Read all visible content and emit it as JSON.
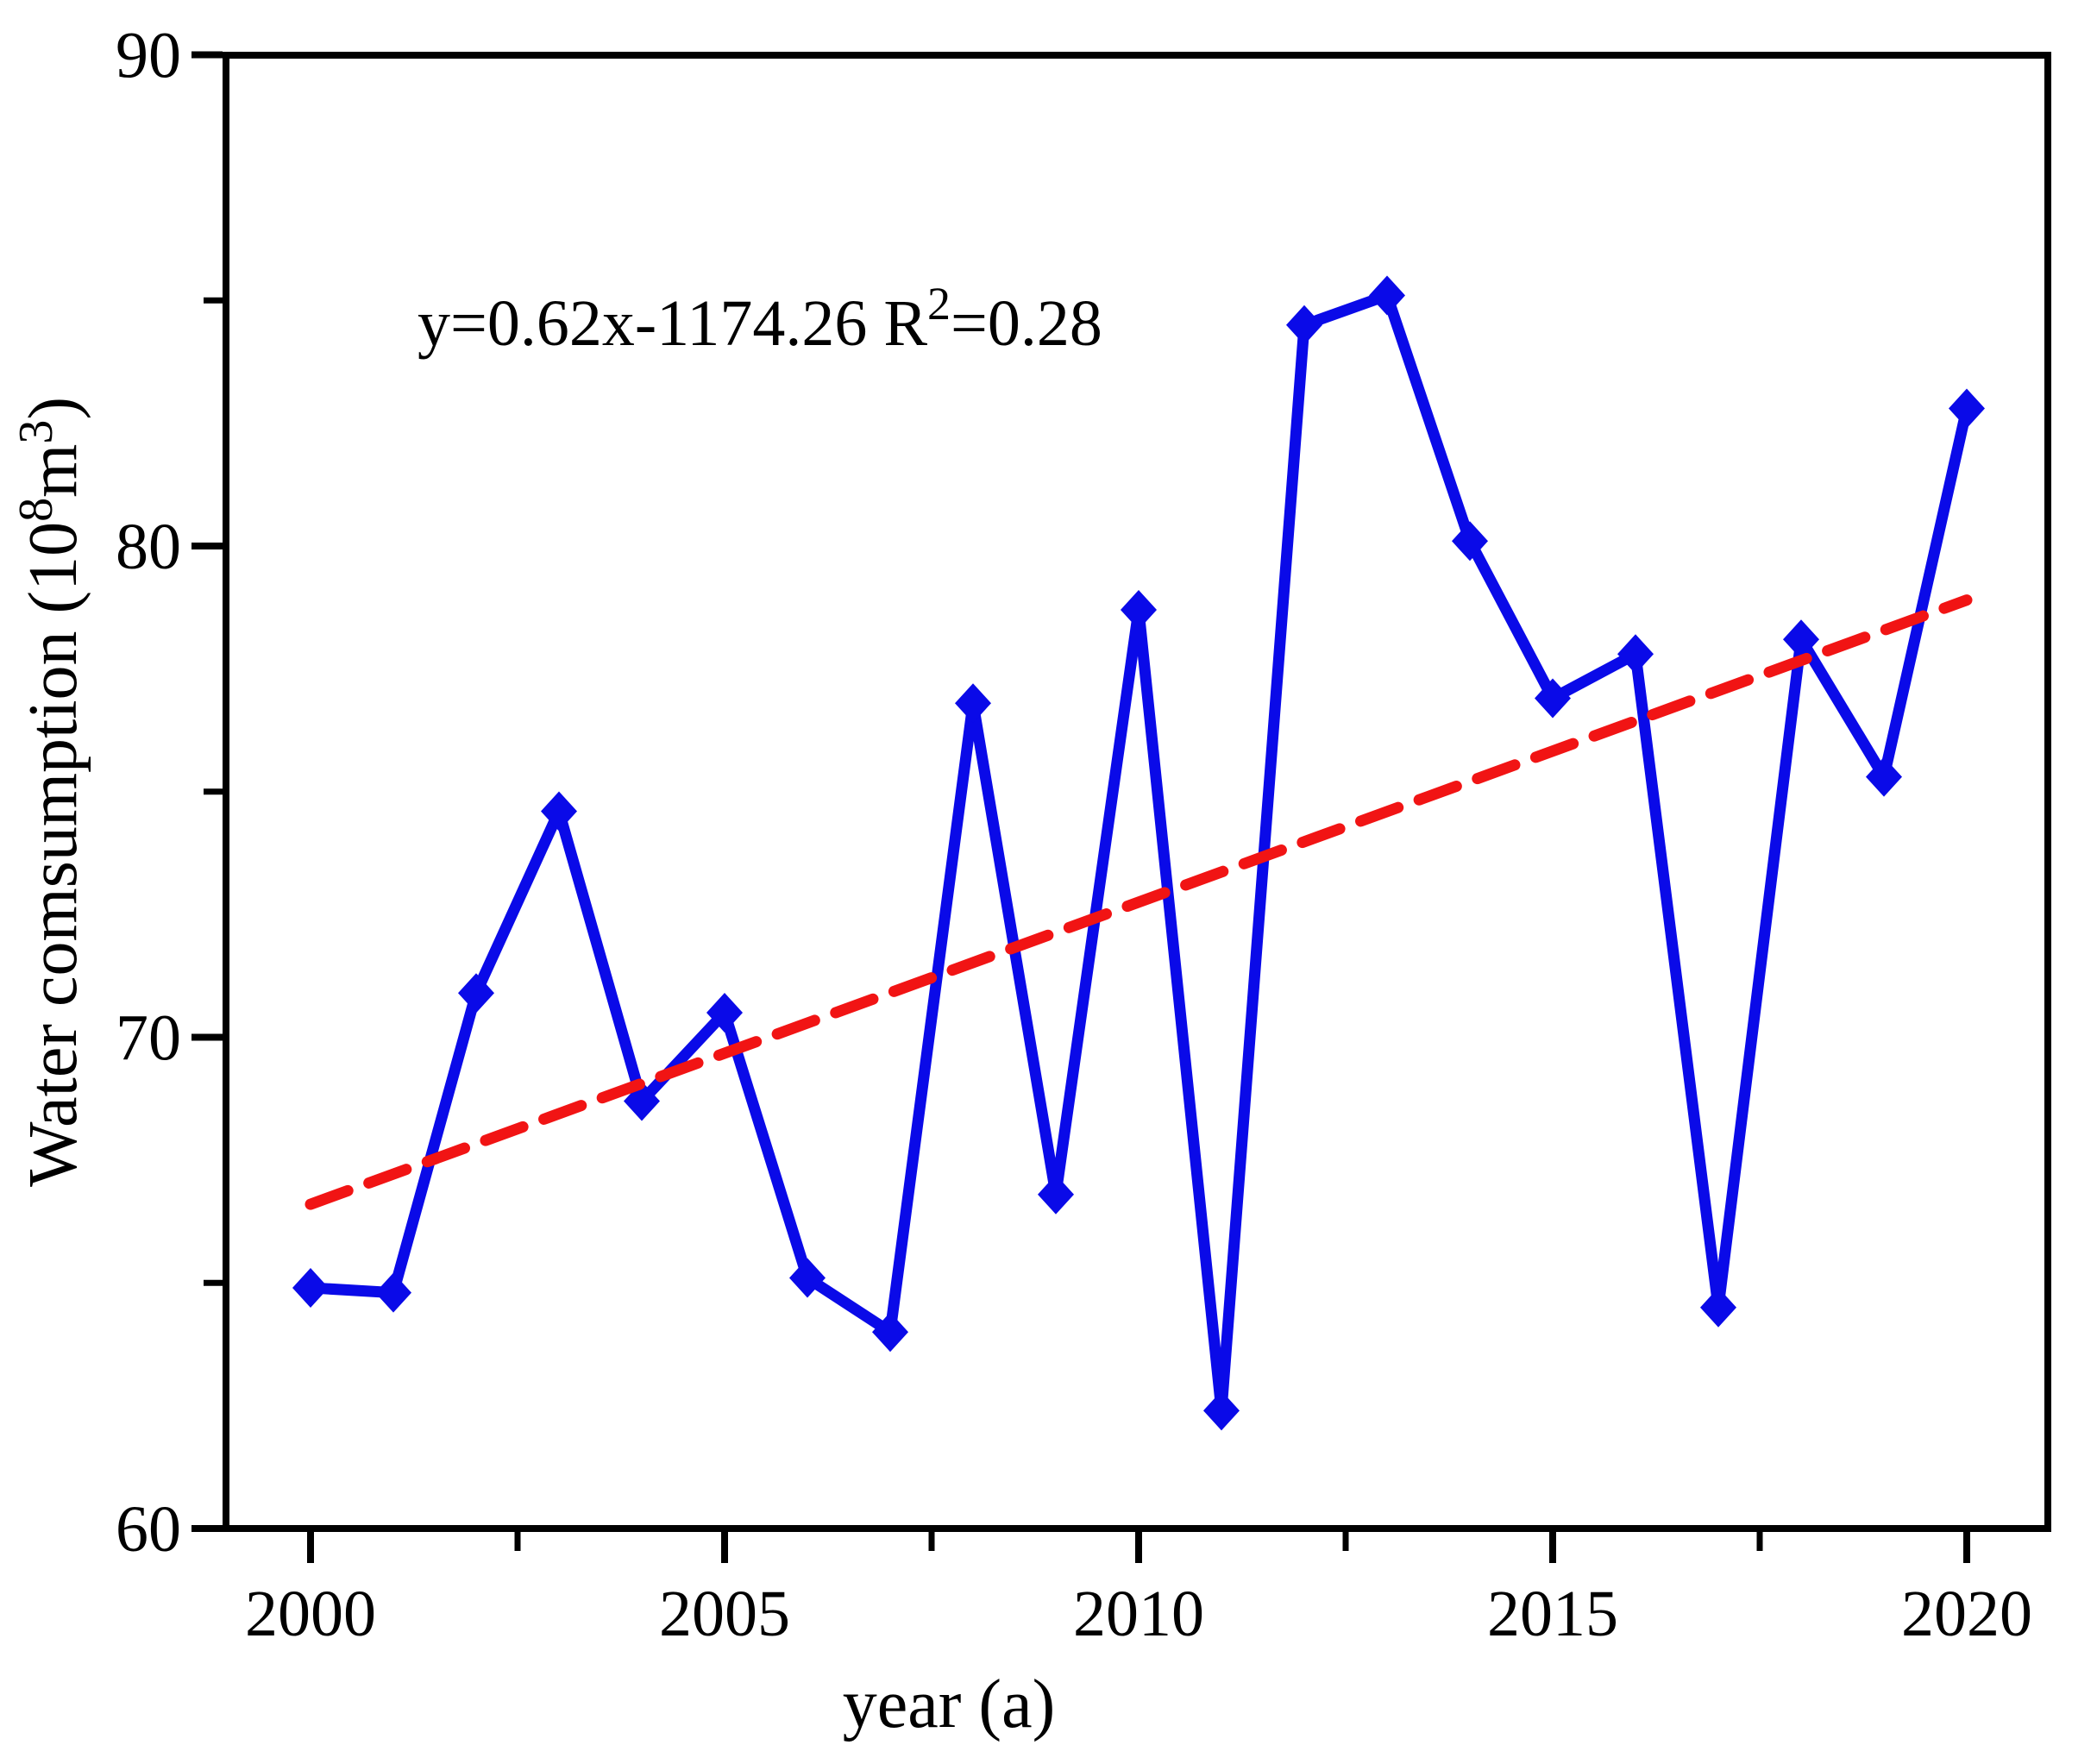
{
  "chart_data": {
    "type": "line",
    "title": "",
    "xlabel": "year (a)",
    "ylabel": "Water comsumption (10⁸m³)",
    "ylabel_parts": [
      {
        "t": "Water comsumption (10"
      },
      {
        "t": "8",
        "sup": true
      },
      {
        "t": "m"
      },
      {
        "t": "3",
        "sup": true
      },
      {
        "t": ")"
      }
    ],
    "annotation": {
      "text": "y=0.62x-1174.26 R²=0.28",
      "parts": [
        {
          "t": "y=0.62x-1174.26 R"
        },
        {
          "t": "2",
          "sup": true
        },
        {
          "t": "=0.28"
        }
      ],
      "equation": "y=0.62x-1174.26",
      "r_squared": 0.28
    },
    "x": [
      2000,
      2001,
      2002,
      2003,
      2004,
      2005,
      2006,
      2007,
      2008,
      2009,
      2010,
      2011,
      2012,
      2013,
      2014,
      2015,
      2016,
      2017,
      2018,
      2019,
      2020
    ],
    "series": [
      {
        "name": "water consumption",
        "marker": "diamond",
        "values": [
          64.9,
          64.8,
          70.9,
          74.6,
          68.7,
          70.5,
          65.1,
          64.0,
          76.8,
          66.8,
          78.7,
          62.4,
          84.5,
          85.1,
          80.1,
          76.9,
          77.8,
          64.5,
          78.1,
          75.3,
          82.8
        ]
      }
    ],
    "trendline": {
      "style": "dashed",
      "endpoints": {
        "x1": 2000,
        "y1": 66.6,
        "x2": 2020,
        "y2": 78.9
      }
    },
    "xlim": [
      1999,
      2021
    ],
    "ylim": [
      60,
      90
    ],
    "x_major_ticks": [
      2000,
      2005,
      2010,
      2015,
      2020
    ],
    "x_minor_ticks": [
      2002.5,
      2007.5,
      2012.5,
      2017.5
    ],
    "y_major_ticks": [
      60,
      70,
      80,
      90
    ],
    "y_minor_ticks": [
      65,
      75,
      85
    ],
    "grid": false,
    "legend": "none",
    "colors": {
      "series": "#0a0ae8",
      "trend": "#f11414",
      "axis": "#000000",
      "background": "#ffffff"
    }
  }
}
